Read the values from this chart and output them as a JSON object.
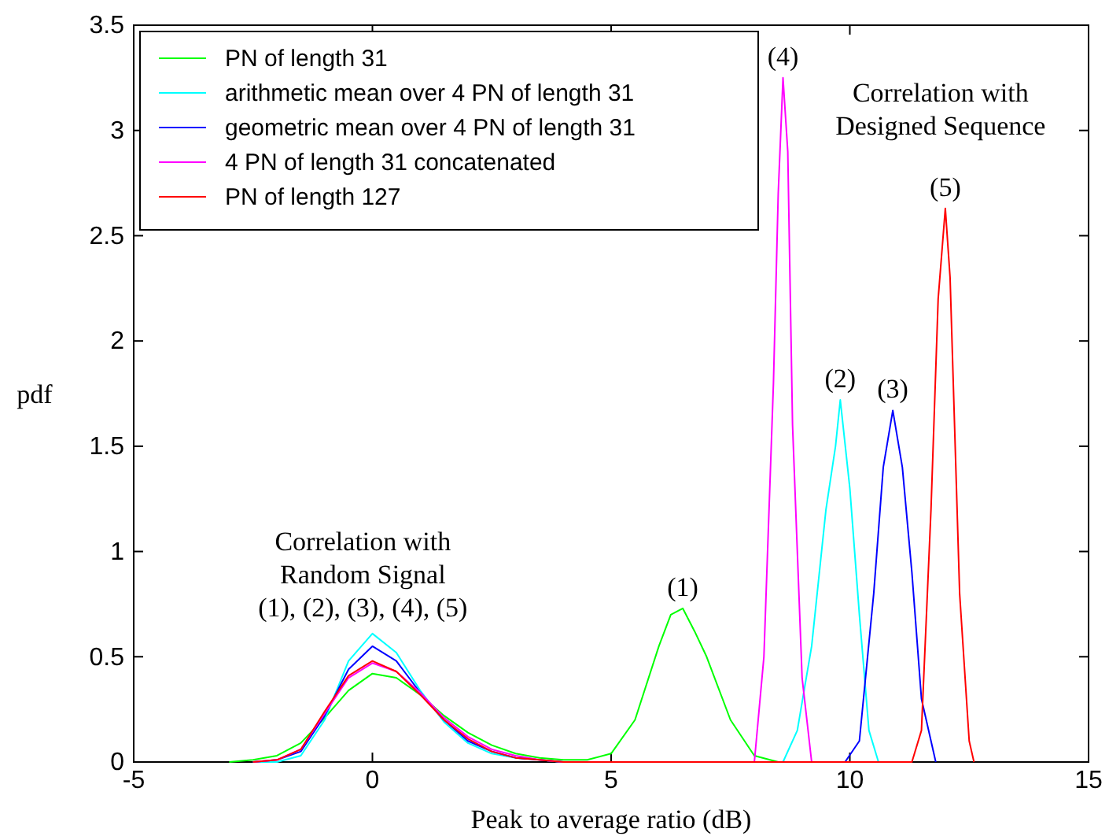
{
  "chart_data": {
    "type": "line",
    "xlabel": "Peak to average ratio (dB)",
    "ylabel": "pdf",
    "xlim": [
      -5,
      15
    ],
    "ylim": [
      0,
      3.5
    ],
    "xticks": [
      -5,
      0,
      5,
      10,
      15
    ],
    "yticks": [
      0,
      0.5,
      1,
      1.5,
      2,
      2.5,
      3,
      3.5
    ],
    "grid": false,
    "legend": "top left",
    "line_style": "solid",
    "marker": "none",
    "series": [
      {
        "name": "PN of length 31",
        "color": "#00ff00",
        "x": [
          -3,
          -2.5,
          -2,
          -1.5,
          -1,
          -0.5,
          0,
          0.5,
          1,
          1.5,
          2,
          2.5,
          3,
          3.5,
          4,
          4.5,
          5,
          5.5,
          6,
          6.25,
          6.5,
          6.75,
          7,
          7.5,
          8,
          8.5
        ],
        "values": [
          0,
          0.01,
          0.03,
          0.09,
          0.21,
          0.34,
          0.42,
          0.4,
          0.32,
          0.22,
          0.14,
          0.08,
          0.04,
          0.02,
          0.01,
          0.01,
          0.04,
          0.2,
          0.55,
          0.7,
          0.73,
          0.62,
          0.5,
          0.2,
          0.03,
          0
        ]
      },
      {
        "name": "arithmetic mean over 4 PN of length 31",
        "color": "#00ffff",
        "x": [
          -2.5,
          -2,
          -1.5,
          -1,
          -0.5,
          0,
          0.5,
          1,
          1.5,
          2,
          2.5,
          3,
          3.5,
          4,
          8.6,
          8.9,
          9.2,
          9.5,
          9.7,
          9.8,
          10,
          10.2,
          10.4,
          10.6
        ],
        "values": [
          0,
          0,
          0.03,
          0.2,
          0.48,
          0.61,
          0.52,
          0.34,
          0.19,
          0.09,
          0.04,
          0.02,
          0.01,
          0,
          0,
          0.15,
          0.55,
          1.2,
          1.5,
          1.72,
          1.3,
          0.7,
          0.15,
          0
        ]
      },
      {
        "name": "geometric mean over 4 PN of length 31",
        "color": "#0000ff",
        "x": [
          -2.5,
          -2,
          -1.5,
          -1,
          -0.5,
          0,
          0.5,
          1,
          1.5,
          2,
          2.5,
          3,
          3.5,
          4,
          9.9,
          10.2,
          10.5,
          10.7,
          10.9,
          11.1,
          11.3,
          11.5,
          11.8
        ],
        "values": [
          0,
          0.01,
          0.05,
          0.22,
          0.44,
          0.55,
          0.48,
          0.33,
          0.2,
          0.1,
          0.05,
          0.02,
          0.01,
          0,
          0,
          0.1,
          0.8,
          1.4,
          1.67,
          1.4,
          0.9,
          0.3,
          0
        ]
      },
      {
        "name": "4 PN of length 31 concatenated",
        "color": "#ff00ff",
        "x": [
          -2.5,
          -2,
          -1.5,
          -1,
          -0.5,
          0,
          0.5,
          1,
          1.5,
          2,
          2.5,
          3,
          3.5,
          4,
          8,
          8.2,
          8.4,
          8.5,
          8.6,
          8.7,
          8.8,
          9,
          9.2
        ],
        "values": [
          0,
          0.01,
          0.06,
          0.23,
          0.4,
          0.47,
          0.43,
          0.33,
          0.21,
          0.12,
          0.06,
          0.03,
          0.01,
          0,
          0,
          0.5,
          1.8,
          2.7,
          3.25,
          2.9,
          1.6,
          0.4,
          0
        ]
      },
      {
        "name": "PN of length 127",
        "color": "#ff0000",
        "x": [
          -2.5,
          -2,
          -1.5,
          -1,
          -0.5,
          0,
          0.5,
          1,
          1.5,
          2,
          2.5,
          3,
          3.5,
          4,
          11.3,
          11.5,
          11.7,
          11.85,
          12,
          12.1,
          12.3,
          12.5,
          12.6
        ],
        "values": [
          0,
          0.01,
          0.06,
          0.24,
          0.41,
          0.48,
          0.43,
          0.32,
          0.2,
          0.11,
          0.05,
          0.02,
          0.01,
          0,
          0,
          0.15,
          1.2,
          2.2,
          2.63,
          2.3,
          0.8,
          0.1,
          0
        ]
      }
    ],
    "annotations": [
      "(1)",
      "(2)",
      "(3)",
      "(4)",
      "(5)",
      "Correlation with\nRandom Signal\n(1), (2), (3), (4), (5)",
      "Correlation with\nDesigned Sequence"
    ]
  }
}
